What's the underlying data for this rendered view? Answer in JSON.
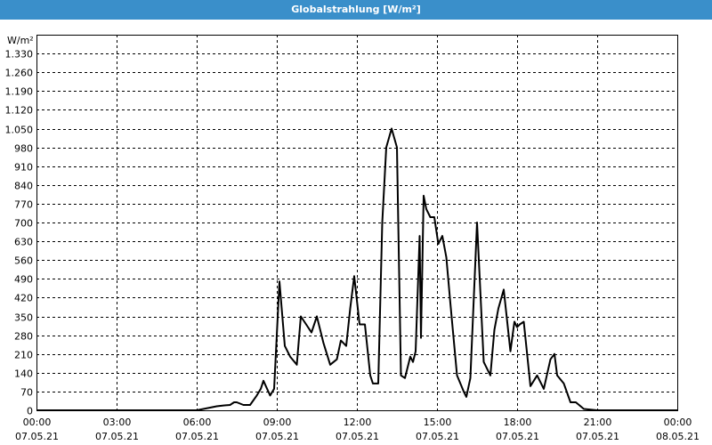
{
  "window": {
    "title": "Globalstrahlung [W/m²]"
  },
  "colors": {
    "titlebar": "#3a8fca",
    "line": "#000000",
    "grid": "#000000"
  },
  "chart_data": {
    "type": "line",
    "title": "Globalstrahlung [W/m²]",
    "ylabel": "W/m²",
    "ylim": [
      0,
      1400
    ],
    "yticks": [
      0,
      70,
      140,
      210,
      280,
      350,
      420,
      490,
      560,
      630,
      700,
      770,
      840,
      910,
      980,
      1050,
      1120,
      1190,
      1260,
      1330
    ],
    "ytick_labels": [
      "0",
      "70",
      "140",
      "210",
      "280",
      "350",
      "420",
      "490",
      "560",
      "630",
      "700",
      "770",
      "840",
      "910",
      "980",
      "1.050",
      "1.120",
      "1.190",
      "1.260",
      "1.330"
    ],
    "xlim_hours": [
      0,
      24
    ],
    "xticks_hours": [
      0,
      3,
      6,
      9,
      12,
      15,
      18,
      21,
      24
    ],
    "xtick_time_labels": [
      "00:00",
      "03:00",
      "06:00",
      "09:00",
      "12:00",
      "15:00",
      "18:00",
      "21:00",
      "00:00"
    ],
    "xtick_date_labels": [
      "07.05.21",
      "07.05.21",
      "07.05.21",
      "07.05.21",
      "07.05.21",
      "07.05.21",
      "07.05.21",
      "07.05.21",
      "08.05.21"
    ],
    "grid": true,
    "series": [
      {
        "x_hours": [
          0.0,
          6.0,
          6.25,
          6.5,
          6.75,
          7.0,
          7.25,
          7.4,
          7.5,
          7.75,
          8.0,
          8.25,
          8.4,
          8.5,
          8.75,
          8.9,
          9.1,
          9.3,
          9.5,
          9.75,
          9.9,
          10.1,
          10.3,
          10.5,
          10.75,
          11.0,
          11.25,
          11.4,
          11.5,
          11.6,
          11.75,
          11.9,
          12.1,
          12.3,
          12.5,
          12.6,
          12.8,
          12.95,
          13.1,
          13.3,
          13.5,
          13.65,
          13.8,
          14.0,
          14.1,
          14.2,
          14.35,
          14.4,
          14.5,
          14.6,
          14.75,
          14.9,
          15.05,
          15.2,
          15.35,
          15.5,
          15.75,
          16.0,
          16.1,
          16.25,
          16.5,
          16.75,
          17.0,
          17.15,
          17.3,
          17.5,
          17.75,
          17.9,
          18.0,
          18.1,
          18.25,
          18.5,
          18.75,
          19.0,
          19.25,
          19.4,
          19.5,
          19.75,
          20.0,
          20.1,
          20.2,
          20.5,
          21.0,
          24.0
        ],
        "values": [
          0,
          0,
          5,
          10,
          15,
          18,
          20,
          30,
          30,
          20,
          20,
          55,
          80,
          110,
          55,
          80,
          480,
          240,
          200,
          170,
          350,
          320,
          290,
          350,
          250,
          170,
          190,
          260,
          250,
          240,
          380,
          500,
          320,
          320,
          130,
          100,
          100,
          700,
          980,
          1050,
          980,
          130,
          120,
          200,
          180,
          220,
          650,
          270,
          800,
          750,
          720,
          720,
          620,
          650,
          570,
          400,
          130,
          70,
          50,
          120,
          700,
          180,
          130,
          300,
          380,
          450,
          220,
          330,
          310,
          320,
          330,
          90,
          130,
          80,
          190,
          210,
          130,
          100,
          30,
          30,
          30,
          5,
          0,
          0
        ]
      }
    ]
  }
}
